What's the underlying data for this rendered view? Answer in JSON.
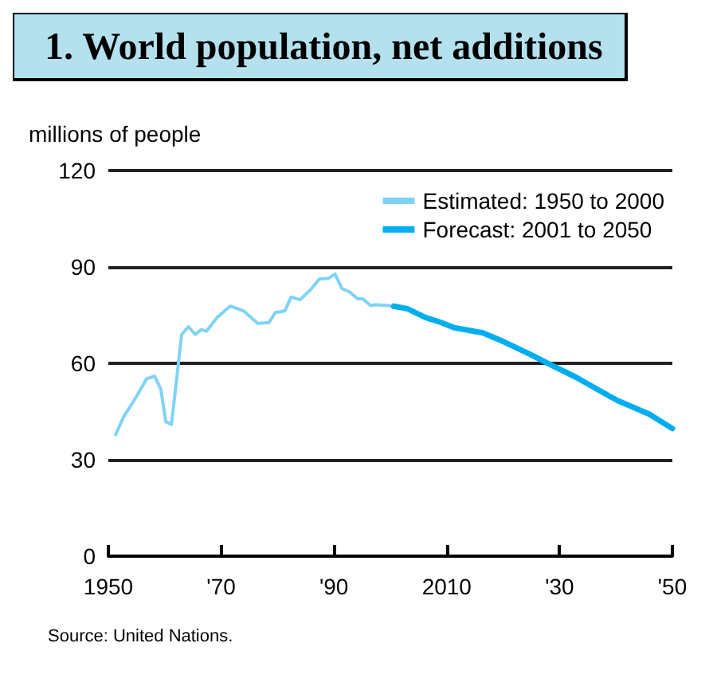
{
  "chart_data": {
    "type": "line",
    "title": "1. World population, net additions",
    "ylabel": "millions of people",
    "xlim": [
      1950,
      2050
    ],
    "xticks": [
      {
        "value": 1950,
        "label": "1950"
      },
      {
        "value": 1970,
        "label": "'70"
      },
      {
        "value": 1990,
        "label": "'90"
      },
      {
        "value": 2010,
        "label": "2010"
      },
      {
        "value": 2030,
        "label": "'30"
      },
      {
        "value": 2050,
        "label": "'50"
      }
    ],
    "ylim": [
      0,
      120
    ],
    "yticks": [
      0,
      30,
      60,
      90,
      120
    ],
    "grid": "y",
    "legend": "top right",
    "marker": "none",
    "line_style": "solid",
    "annotations": [
      "Source: United Nations."
    ],
    "series": [
      {
        "name": "Estimated: 1950 to 2000",
        "color": "#7fd3f5",
        "x": [
          1951.3,
          1952.7,
          1955,
          1956.8,
          1958.2,
          1959.3,
          1960.2,
          1961.2,
          1963,
          1964.2,
          1965.4,
          1966.5,
          1967.4,
          1969.3,
          1971.6,
          1974,
          1976.5,
          1978.5,
          1979.6,
          1981.3,
          1982.4,
          1984,
          1985.9,
          1987.4,
          1989.1,
          1990.2,
          1991.4,
          1992.8,
          1994.2,
          1995.1,
          1996.5,
          1997.4,
          1999.7,
          2000.4
        ],
        "values": [
          37.8,
          43.3,
          49.7,
          55.2,
          56,
          52,
          41.8,
          41,
          69,
          71.4,
          69,
          70.5,
          70,
          74.3,
          77.8,
          76.3,
          72.4,
          72.7,
          75.8,
          76.3,
          80.6,
          79.8,
          83,
          86.2,
          86.5,
          87.8,
          83.3,
          82.2,
          80.1,
          80.1,
          78,
          78.2,
          78,
          77.5
        ]
      },
      {
        "name": "Forecast: 2001 to 2050",
        "color": "#00aeef",
        "x": [
          2000.6,
          2003,
          2006.2,
          2009,
          2011.3,
          2016.4,
          2020,
          2024.7,
          2028.8,
          2033,
          2036.6,
          2040.3,
          2045.9,
          2050
        ],
        "values": [
          77.8,
          77,
          74.3,
          72.7,
          71.1,
          69.5,
          66.8,
          62.9,
          59.2,
          55.6,
          52,
          48.4,
          44.2,
          39.7
        ]
      }
    ]
  }
}
